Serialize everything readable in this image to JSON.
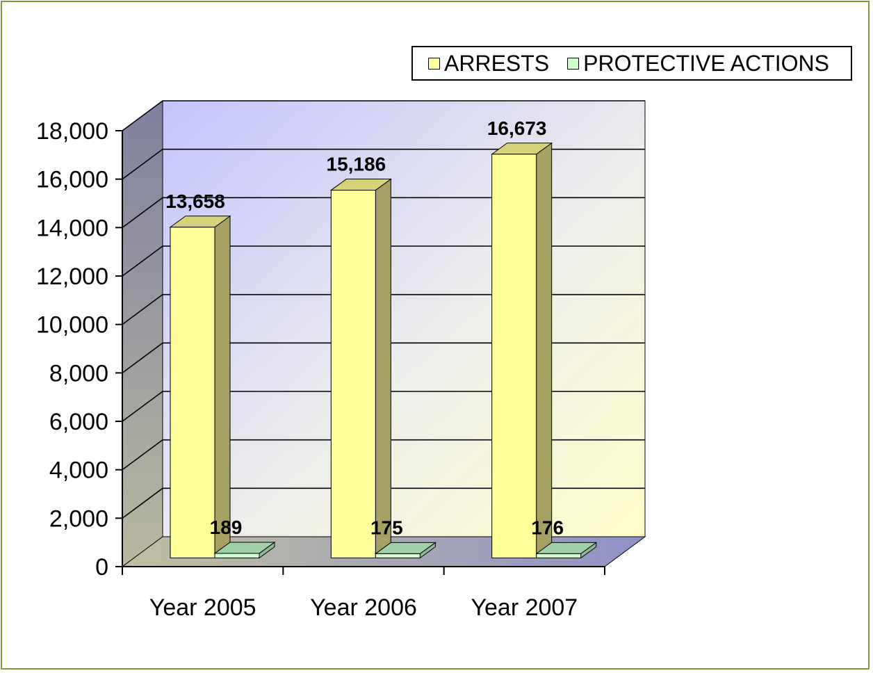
{
  "chart_data": {
    "type": "bar",
    "categories": [
      "Year 2005",
      "Year 2006",
      "Year 2007"
    ],
    "series": [
      {
        "name": "ARRESTS",
        "values": [
          13658,
          15186,
          16673
        ],
        "labels": [
          "13,658",
          "15,186",
          "16,673"
        ],
        "color": "#ffff99"
      },
      {
        "name": "PROTECTIVE ACTIONS",
        "values": [
          189,
          175,
          176
        ],
        "labels": [
          "189",
          "175",
          "176"
        ],
        "color": "#ccffcc"
      }
    ],
    "ylim": [
      0,
      18000
    ],
    "yticks": [
      0,
      2000,
      4000,
      6000,
      8000,
      10000,
      12000,
      14000,
      16000,
      18000
    ],
    "ytick_labels": [
      "0",
      "2,000",
      "4,000",
      "6,000",
      "8,000",
      "10,000",
      "12,000",
      "14,000",
      "16,000",
      "18,000"
    ],
    "grid": true,
    "three_d": true,
    "legend_position": "top-right",
    "xlabel": "",
    "ylabel": "",
    "title": ""
  },
  "colors": {
    "frame_border": "#7a9a3c",
    "back_wall_left": "#c8c8ff",
    "back_wall_right": "#ffffd8",
    "side_wall": "#8c8ca8",
    "floor": "#9a9ac0"
  }
}
